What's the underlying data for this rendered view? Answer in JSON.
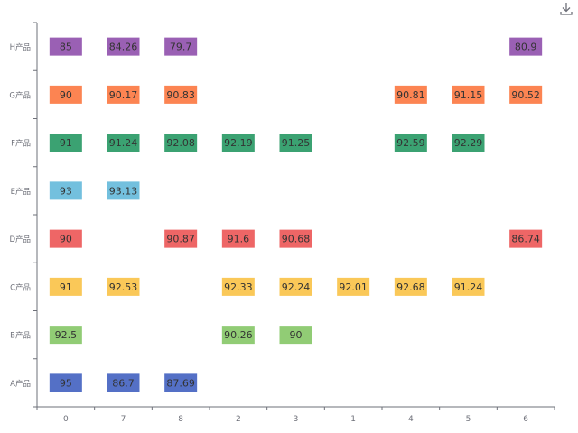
{
  "chart_data": {
    "type": "heatmap",
    "categories": [
      "0",
      "7",
      "8",
      "2",
      "3",
      "1",
      "4",
      "5",
      "6"
    ],
    "rows": [
      "A产品",
      "B产品",
      "C产品",
      "D产品",
      "E产品",
      "F产品",
      "G产品",
      "H产品"
    ],
    "series": [
      {
        "name": "A产品",
        "color": "#5470c6",
        "values": [
          95,
          86.7,
          87.69,
          null,
          null,
          null,
          null,
          null,
          null
        ]
      },
      {
        "name": "B产品",
        "color": "#91cc75",
        "values": [
          92.5,
          null,
          null,
          90.26,
          90,
          null,
          null,
          null,
          null
        ]
      },
      {
        "name": "C产品",
        "color": "#fac858",
        "values": [
          91,
          92.53,
          null,
          92.33,
          92.24,
          92.01,
          92.68,
          91.24,
          null
        ]
      },
      {
        "name": "D产品",
        "color": "#ee6666",
        "values": [
          90,
          null,
          90.87,
          91.6,
          90.68,
          null,
          null,
          null,
          86.74
        ]
      },
      {
        "name": "E产品",
        "color": "#73c0de",
        "values": [
          93,
          93.13,
          null,
          null,
          null,
          null,
          null,
          null,
          null
        ]
      },
      {
        "name": "F产品",
        "color": "#3ba272",
        "values": [
          91,
          91.24,
          92.08,
          92.19,
          91.25,
          null,
          92.59,
          92.29,
          null
        ]
      },
      {
        "name": "G产品",
        "color": "#fc8452",
        "values": [
          90,
          90.17,
          90.83,
          null,
          null,
          null,
          90.81,
          91.15,
          90.52
        ]
      },
      {
        "name": "H产品",
        "color": "#9a60b4",
        "values": [
          85,
          84.26,
          79.7,
          null,
          null,
          null,
          null,
          null,
          80.9
        ]
      }
    ],
    "grid": false
  },
  "toolbox": {
    "download_icon": "download-icon"
  },
  "colors": {
    "axis": "#6e7079",
    "label": "#333333"
  }
}
